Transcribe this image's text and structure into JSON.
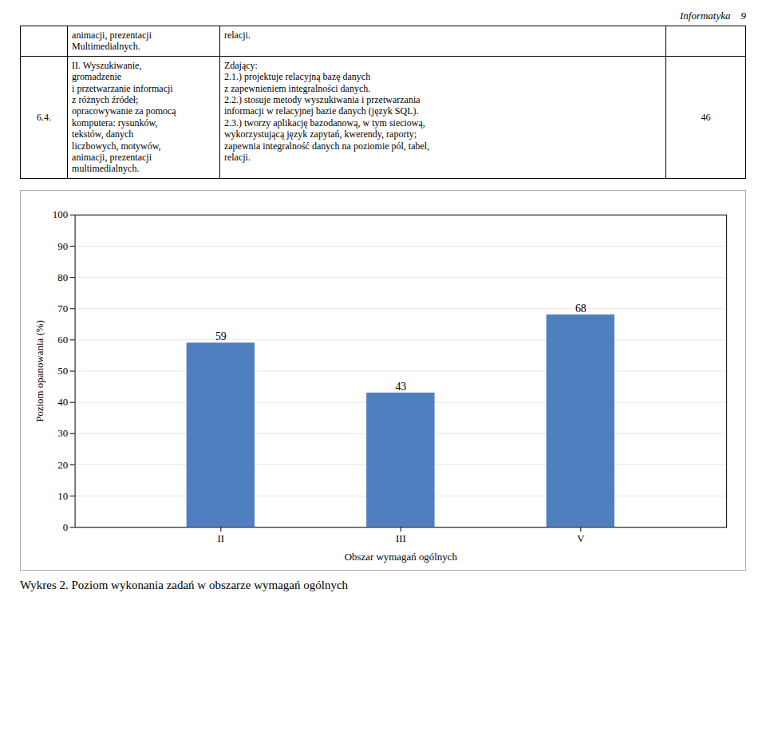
{
  "chart_data": {
    "type": "bar",
    "page_header": "Informatyka    9",
    "table": [
      [
        null,
        "animacji, prezentacji\nMultimedialnych.",
        "relacji.",
        null
      ],
      [
        "6.4.",
        "II. Wyszukiwanie,\ngromadzenie\ni przetwarzanie informacji\nz różnych źródeł;\nopracowywanie za pomocą\nkomputera: rysunków,\ntekstów, danych\nliczbowych, motywów,\nanimacji, prezentacji\nmultimedialnych.",
        "Zdający:\n2.1.) projektuje relacyjną bazę danych\nz zapewnieniem integralności danych.\n2.2.) stosuje metody wyszukiwania i przetwarzania\ninformacji w relacyjnej bazie danych (język SQL).\n2.3.) tworzy aplikację bazodanową, w tym sieciową,\nwykorzystującą język zapytań, kwerendy, raporty;\nzapewnia integralność danych na poziomie pól, tabel,\nrelacji.",
        "46"
      ]
    ],
    "categories": [
      "II",
      "III",
      "V"
    ],
    "values": [
      59,
      43,
      68
    ],
    "color": "#4f7fbf",
    "xlabel": "Obszar wymagań ogólnych",
    "ylabel": "Poziom opanowania (%)",
    "ylim": [
      0,
      100
    ],
    "yticks": [
      0,
      10,
      20,
      30,
      40,
      50,
      60,
      70,
      80,
      90,
      100
    ],
    "grid": true,
    "data_labels": true,
    "caption": "Wykres 2. Poziom wykonania zadań w obszarze wymagań ogólnych"
  }
}
